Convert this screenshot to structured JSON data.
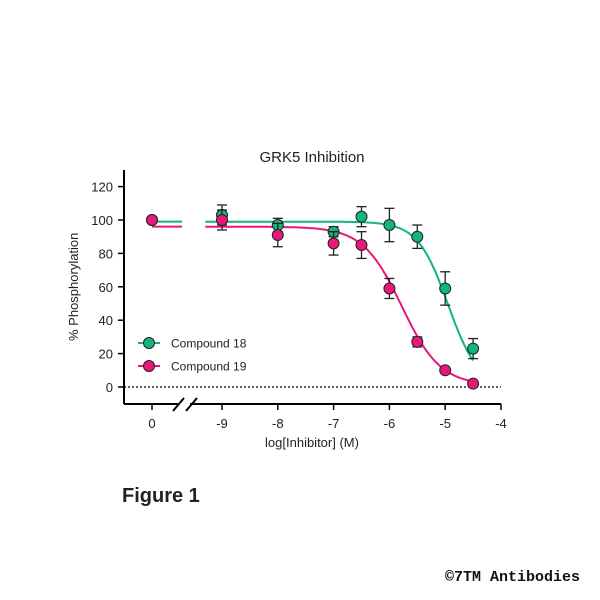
{
  "chart_data": {
    "type": "scatter",
    "title": "GRK5 Inhibition",
    "xlabel": "log[Inhibitor] (M)",
    "ylabel": "% Phosphorylation",
    "ylim": [
      0,
      120
    ],
    "yticks": [
      0,
      20,
      40,
      60,
      80,
      100,
      120
    ],
    "xlim": [
      -9.5,
      -4
    ],
    "xticks": [
      -9,
      -8,
      -7,
      -6,
      -5,
      -4
    ],
    "control_tick": "0",
    "axis_break": true,
    "baseline": 0,
    "legend": "bottom-left",
    "series": [
      {
        "name": "Compound 18",
        "color": "#13b57a",
        "control": {
          "y": 100
        },
        "x": [
          -9,
          -8,
          -7,
          -6.5,
          -6,
          -5.5,
          -5,
          -4.5
        ],
        "y": [
          103,
          97,
          93,
          102,
          97,
          90,
          59,
          23
        ],
        "err": [
          6,
          4,
          3,
          6,
          10,
          7,
          10,
          6
        ],
        "fit": {
          "top": 99,
          "bottom": 0,
          "logIC50": -4.95,
          "hill": 1.6
        }
      },
      {
        "name": "Compound 19",
        "color": "#e8177a",
        "control": {
          "y": 100
        },
        "x": [
          -9,
          -8,
          -7,
          -6.5,
          -6,
          -5.5,
          -5,
          -4.5
        ],
        "y": [
          100,
          91,
          86,
          85,
          59,
          27,
          10,
          2
        ],
        "err": [
          6,
          7,
          7,
          8,
          6,
          3,
          1,
          1
        ],
        "fit": {
          "top": 96,
          "bottom": 1,
          "logIC50": -5.78,
          "hill": 1.25
        }
      }
    ]
  },
  "figure_label": "Figure 1",
  "copyright": "©7TM Antibodies"
}
